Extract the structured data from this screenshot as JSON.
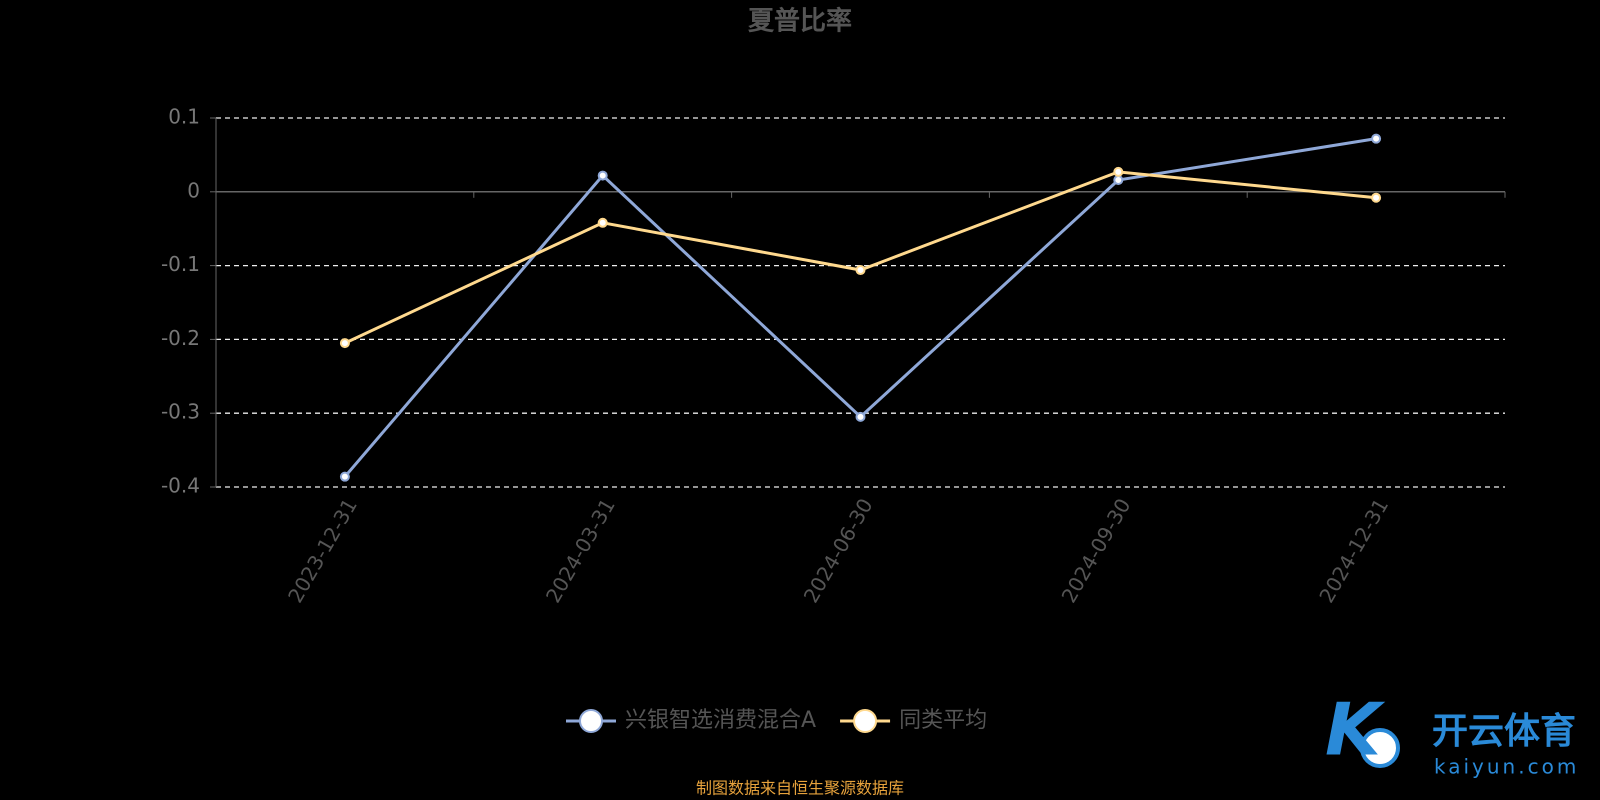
{
  "chart_data": {
    "type": "line",
    "title": "夏普比率",
    "categories": [
      "2023-12-31",
      "2024-03-31",
      "2024-06-30",
      "2024-09-30",
      "2024-12-31"
    ],
    "series": [
      {
        "name": "兴银智选消费混合A",
        "color": "#8fa8d8",
        "values": [
          -0.386,
          0.022,
          -0.305,
          0.016,
          0.072
        ]
      },
      {
        "name": "同类平均",
        "color": "#ffd98e",
        "values": [
          -0.205,
          -0.042,
          -0.106,
          0.027,
          -0.008
        ]
      }
    ],
    "ylim": [
      -0.4,
      0.1
    ],
    "yticks": [
      -0.4,
      -0.3,
      -0.2,
      -0.1,
      0,
      0.1
    ],
    "grid": true,
    "legend": "bottom",
    "source": "制图数据来自恒生聚源数据库",
    "watermark": {
      "brand": "开云体育",
      "site": "kaiyun.com"
    }
  }
}
